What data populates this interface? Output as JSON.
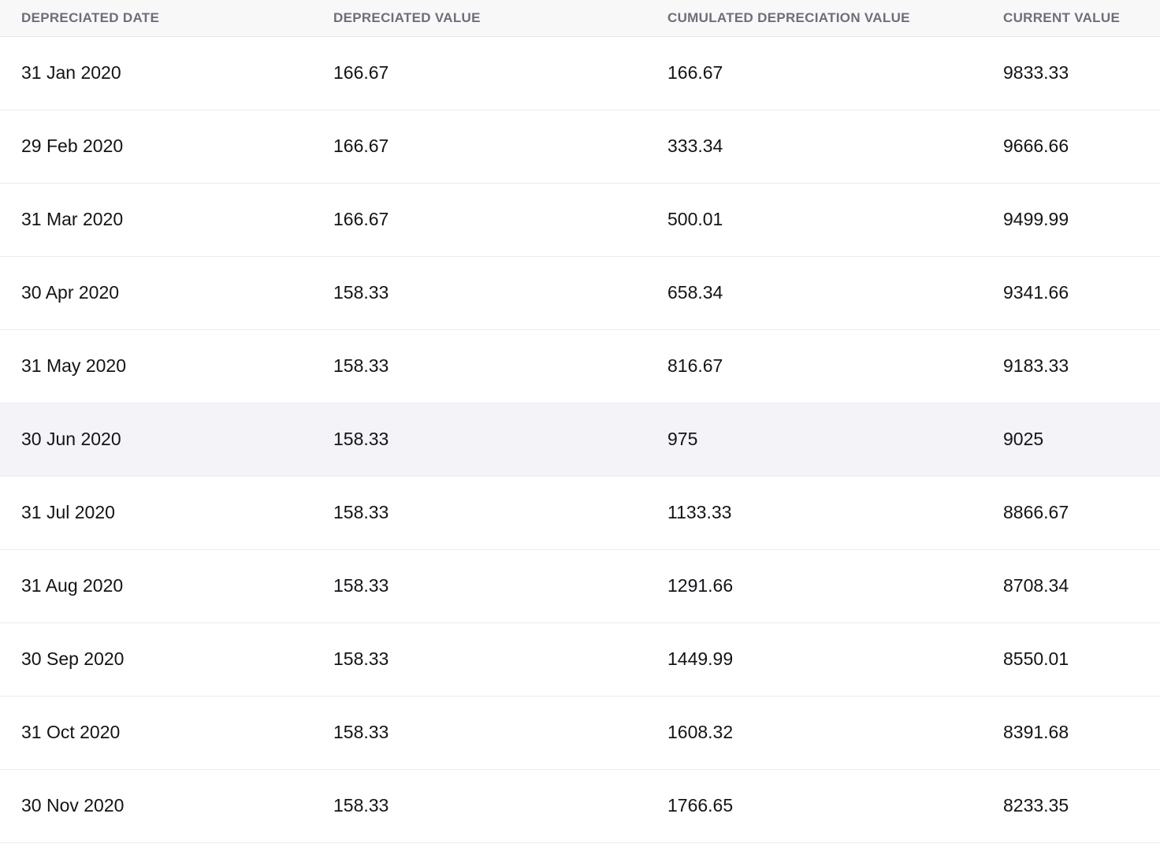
{
  "table": {
    "columns": [
      {
        "label": "DEPRECIATED DATE"
      },
      {
        "label": "DEPRECIATED VALUE"
      },
      {
        "label": "CUMULATED DEPRECIATION VALUE"
      },
      {
        "label": "CURRENT VALUE"
      }
    ],
    "rows": [
      {
        "date": "31 Jan 2020",
        "depreciated_value": "166.67",
        "cumulated_depreciation_value": "166.67",
        "current_value": "9833.33",
        "highlighted": false
      },
      {
        "date": "29 Feb 2020",
        "depreciated_value": "166.67",
        "cumulated_depreciation_value": "333.34",
        "current_value": "9666.66",
        "highlighted": false
      },
      {
        "date": "31 Mar 2020",
        "depreciated_value": "166.67",
        "cumulated_depreciation_value": "500.01",
        "current_value": "9499.99",
        "highlighted": false
      },
      {
        "date": "30 Apr 2020",
        "depreciated_value": "158.33",
        "cumulated_depreciation_value": "658.34",
        "current_value": "9341.66",
        "highlighted": false
      },
      {
        "date": "31 May 2020",
        "depreciated_value": "158.33",
        "cumulated_depreciation_value": "816.67",
        "current_value": "9183.33",
        "highlighted": false
      },
      {
        "date": "30 Jun 2020",
        "depreciated_value": "158.33",
        "cumulated_depreciation_value": "975",
        "current_value": "9025",
        "highlighted": true
      },
      {
        "date": "31 Jul 2020",
        "depreciated_value": "158.33",
        "cumulated_depreciation_value": "1133.33",
        "current_value": "8866.67",
        "highlighted": false
      },
      {
        "date": "31 Aug 2020",
        "depreciated_value": "158.33",
        "cumulated_depreciation_value": "1291.66",
        "current_value": "8708.34",
        "highlighted": false
      },
      {
        "date": "30 Sep 2020",
        "depreciated_value": "158.33",
        "cumulated_depreciation_value": "1449.99",
        "current_value": "8550.01",
        "highlighted": false
      },
      {
        "date": "31 Oct 2020",
        "depreciated_value": "158.33",
        "cumulated_depreciation_value": "1608.32",
        "current_value": "8391.68",
        "highlighted": false
      },
      {
        "date": "30 Nov 2020",
        "depreciated_value": "158.33",
        "cumulated_depreciation_value": "1766.65",
        "current_value": "8233.35",
        "highlighted": false
      }
    ]
  },
  "colors": {
    "header_bg": "#f8f8f9",
    "header_text": "#6e6e7b",
    "row_border": "#ececf1",
    "highlight_bg": "#f4f4f8",
    "body_text": "#141418"
  }
}
